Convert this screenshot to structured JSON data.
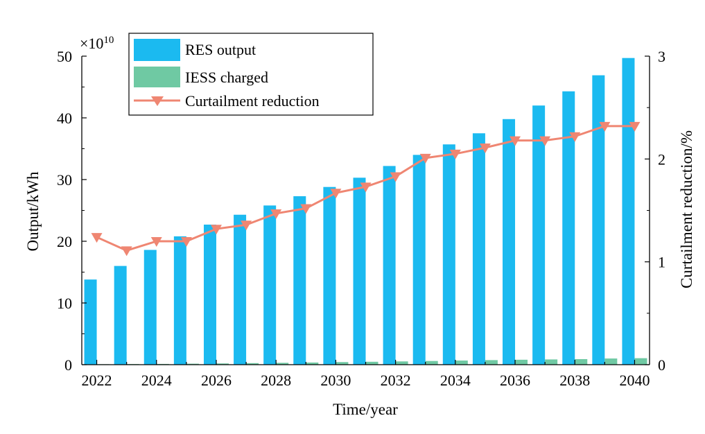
{
  "chart_data": {
    "type": "bar",
    "xlabel": "Time/year",
    "ylabel_left": "Output/kWh",
    "ylabel_right": "Curtailment reduction/%",
    "y_multiplier_base": "×10",
    "y_multiplier_exp": "10",
    "x_tick_labels": [
      "2022",
      "2024",
      "2026",
      "2028",
      "2030",
      "2032",
      "2034",
      "2036",
      "2038",
      "2040"
    ],
    "y_left_ticks": [
      "0",
      "10",
      "20",
      "30",
      "40",
      "50"
    ],
    "y_right_ticks": [
      "0",
      "1",
      "2",
      "3"
    ],
    "ylim_left": [
      0,
      50
    ],
    "ylim_right": [
      0,
      3
    ],
    "legend_position": "top-left",
    "years": [
      2022,
      2023,
      2024,
      2025,
      2026,
      2027,
      2028,
      2029,
      2030,
      2031,
      2032,
      2033,
      2034,
      2035,
      2036,
      2037,
      2038,
      2039,
      2040
    ],
    "series": [
      {
        "name": "RES output",
        "type": "bar",
        "axis": "left",
        "color": "#1bbaf0",
        "values": [
          13.8,
          16.0,
          18.6,
          20.8,
          22.7,
          24.3,
          25.8,
          27.3,
          28.8,
          30.3,
          32.2,
          34.0,
          35.7,
          37.5,
          39.8,
          42.0,
          44.3,
          46.9,
          49.7
        ]
      },
      {
        "name": "IESS charged",
        "type": "bar",
        "axis": "left",
        "color": "#6fc9a3",
        "values": [
          0.08,
          0.1,
          0.12,
          0.16,
          0.2,
          0.25,
          0.3,
          0.35,
          0.42,
          0.47,
          0.53,
          0.6,
          0.67,
          0.74,
          0.8,
          0.85,
          0.9,
          1.0,
          1.05
        ]
      },
      {
        "name": "Curtailment reduction",
        "type": "line",
        "axis": "right",
        "color": "#ef8672",
        "marker": "down-triangle",
        "values": [
          1.24,
          1.11,
          1.2,
          1.2,
          1.32,
          1.36,
          1.47,
          1.52,
          1.67,
          1.73,
          1.83,
          2.01,
          2.05,
          2.11,
          2.18,
          2.18,
          2.22,
          2.32,
          2.32
        ]
      }
    ]
  }
}
